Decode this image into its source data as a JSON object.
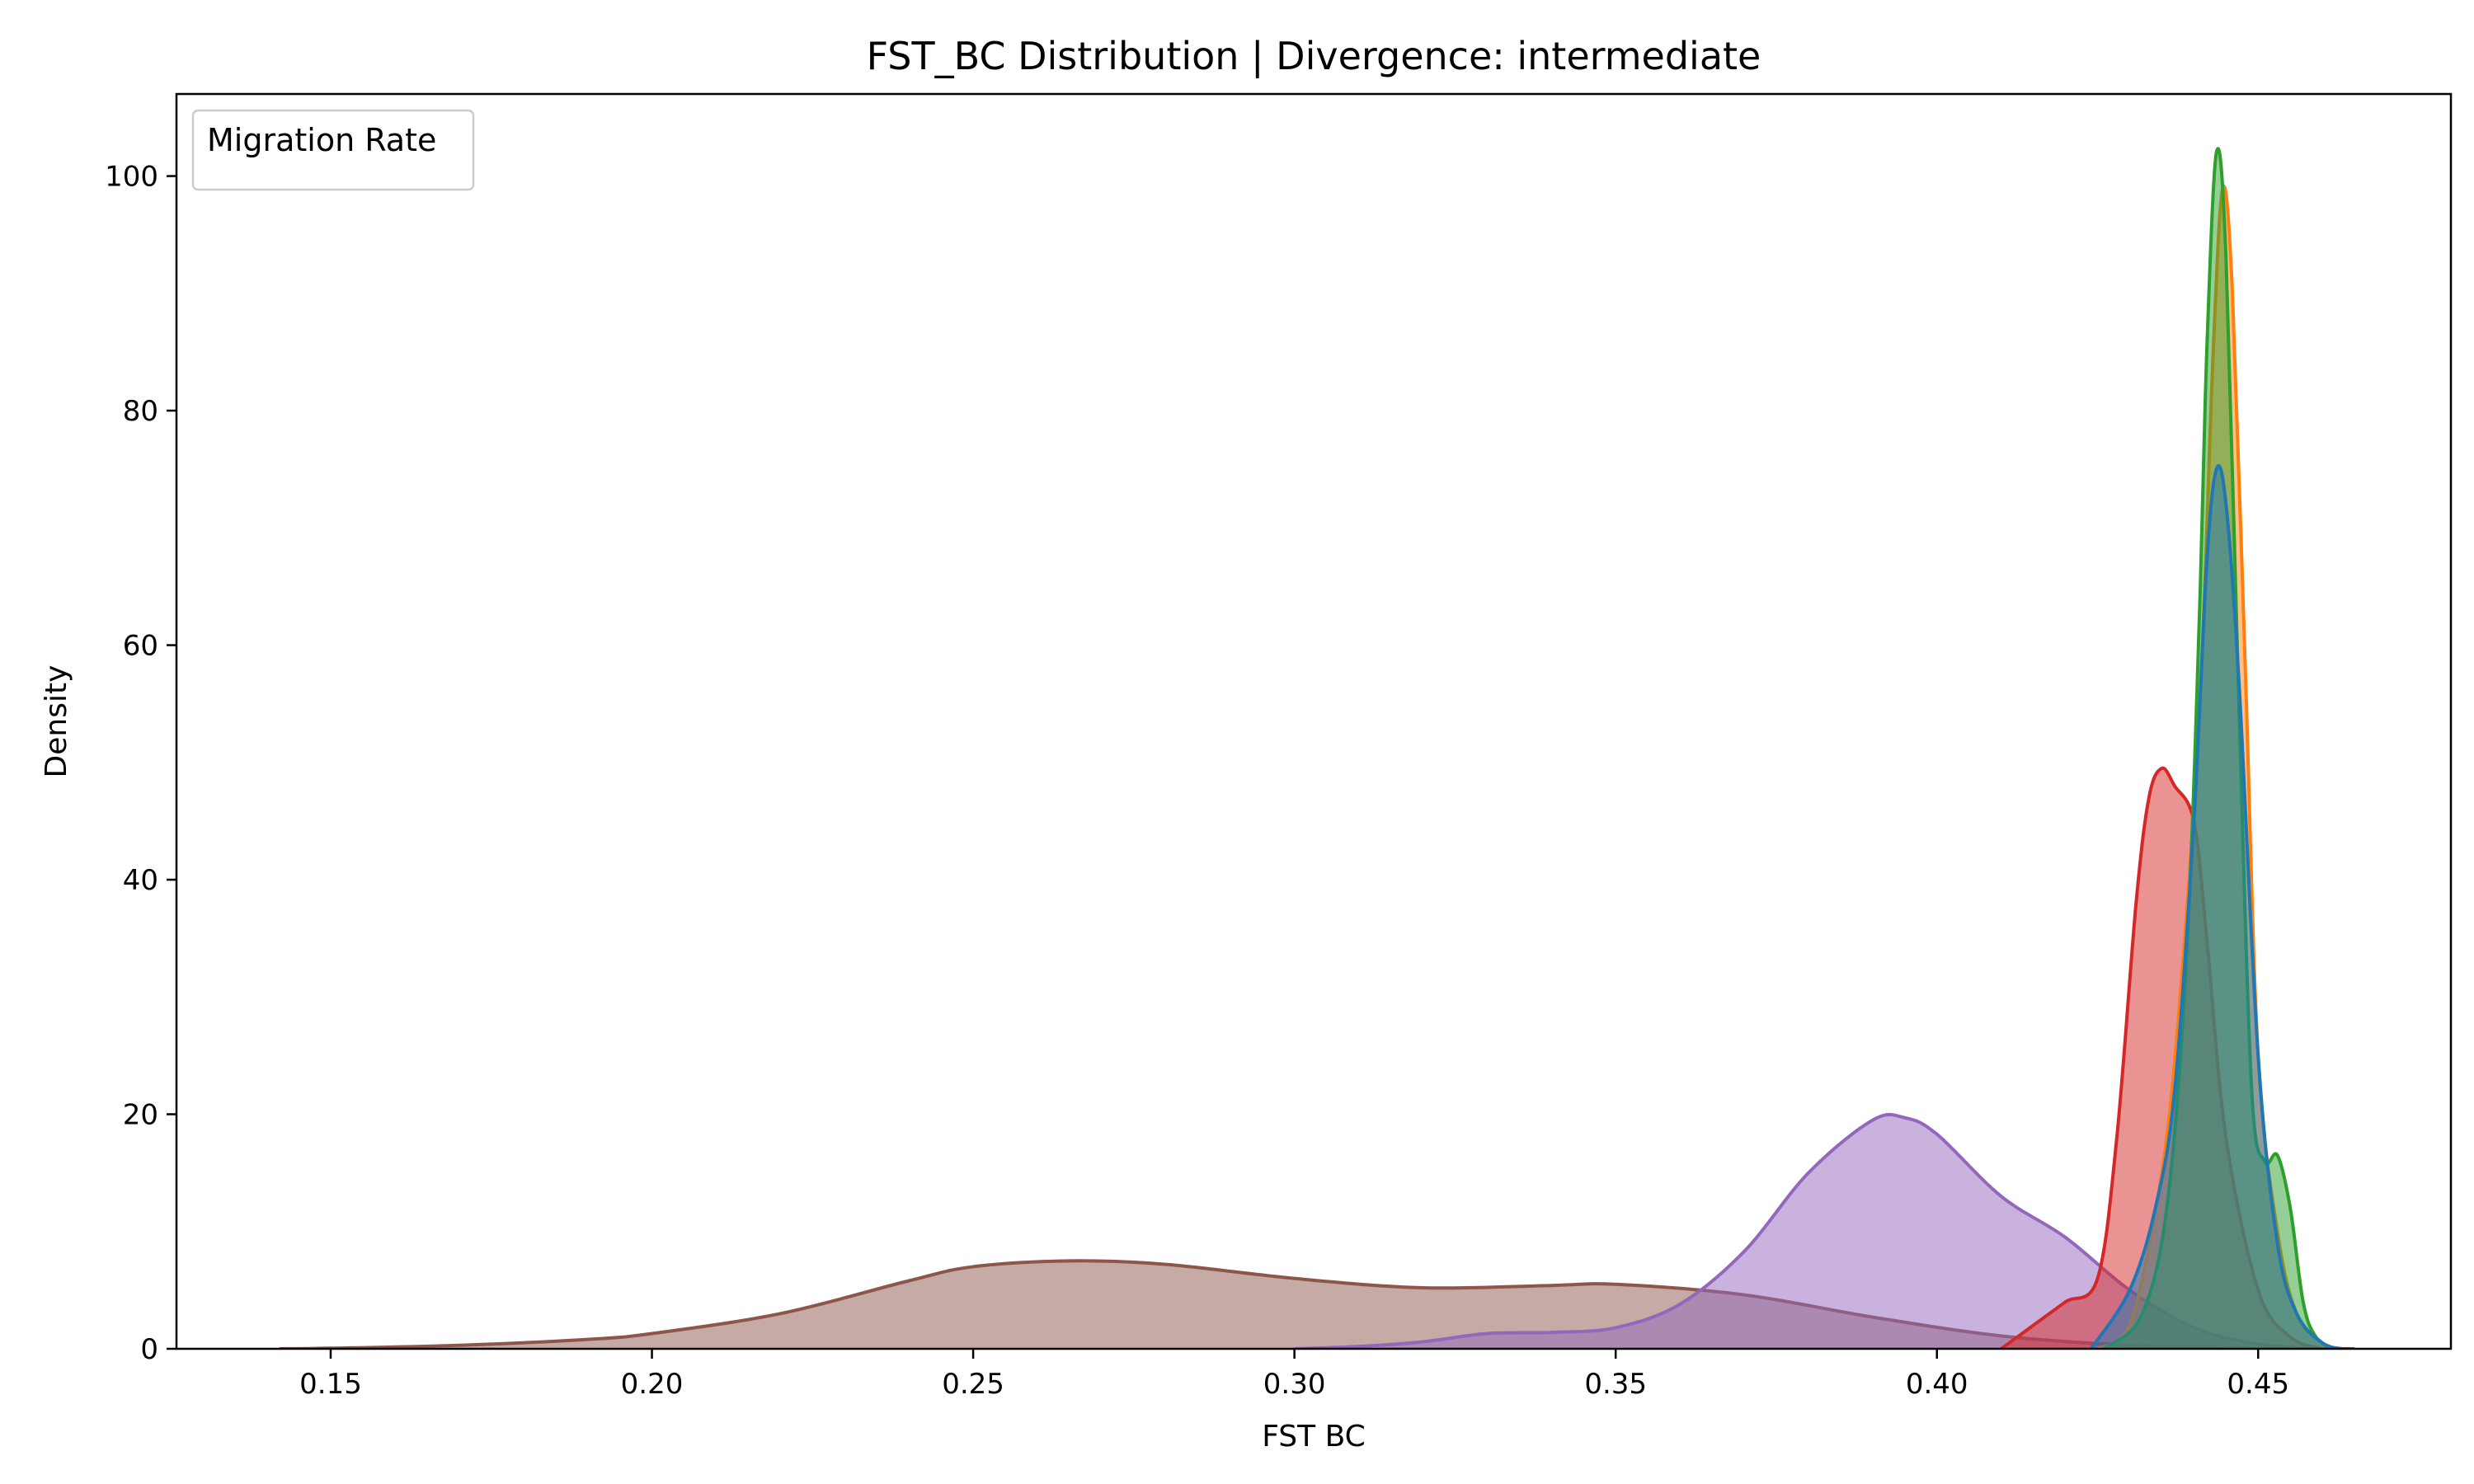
{
  "chart_data": {
    "type": "area",
    "title": "FST_BC Distribution | Divergence: intermediate",
    "xlabel": "FST BC",
    "ylabel": "Density",
    "xlim": [
      0.126,
      0.48
    ],
    "ylim": [
      0,
      107
    ],
    "x_ticks": [
      0.15,
      0.2,
      0.25,
      0.3,
      0.35,
      0.4,
      0.45
    ],
    "x_tick_labels": [
      "0.15",
      "0.20",
      "0.25",
      "0.30",
      "0.35",
      "0.40",
      "0.45"
    ],
    "y_ticks": [
      0,
      20,
      40,
      60,
      80,
      100
    ],
    "y_tick_labels": [
      "0",
      "20",
      "40",
      "60",
      "80",
      "100"
    ],
    "grid": false,
    "legend": {
      "title": "Migration Rate",
      "placement": "top-left",
      "entries": []
    },
    "series": [
      {
        "color": "#8c564b",
        "x": [
          0.142,
          0.15,
          0.17,
          0.19,
          0.2,
          0.22,
          0.24,
          0.25,
          0.265,
          0.28,
          0.3,
          0.32,
          0.34,
          0.35,
          0.37,
          0.39,
          0.41,
          0.43,
          0.45,
          0.465
        ],
        "y": [
          0,
          0.05,
          0.3,
          0.8,
          1.3,
          3.0,
          5.8,
          7.0,
          7.5,
          7.2,
          6.0,
          5.2,
          5.4,
          5.5,
          4.6,
          2.7,
          1.1,
          0.3,
          0.05,
          0
        ]
      },
      {
        "color": "#9467bd",
        "x": [
          0.3,
          0.31,
          0.32,
          0.33,
          0.34,
          0.35,
          0.36,
          0.37,
          0.38,
          0.39,
          0.395,
          0.4,
          0.41,
          0.42,
          0.43,
          0.44,
          0.45,
          0.46
        ],
        "y": [
          0,
          0.2,
          0.6,
          1.3,
          1.4,
          1.8,
          3.8,
          8.3,
          15.0,
          19.5,
          19.7,
          18.3,
          13.0,
          9.5,
          5.0,
          1.8,
          0.4,
          0
        ]
      },
      {
        "color": "#d62728",
        "x": [
          0.41,
          0.415,
          0.42,
          0.425,
          0.428,
          0.431,
          0.433,
          0.435,
          0.437,
          0.44,
          0.442,
          0.445,
          0.45,
          0.455,
          0.46
        ],
        "y": [
          0,
          2.0,
          4.0,
          6.0,
          18.0,
          38.0,
          47.0,
          49.5,
          48.0,
          45.0,
          35.0,
          18.0,
          5.0,
          1.0,
          0
        ]
      },
      {
        "color": "#ff7f0e",
        "x": [
          0.425,
          0.43,
          0.435,
          0.438,
          0.441,
          0.443,
          0.4445,
          0.446,
          0.448,
          0.45,
          0.453,
          0.456,
          0.46,
          0.463
        ],
        "y": [
          0,
          2.0,
          15.0,
          31.0,
          56.0,
          85.0,
          99.0,
          90.0,
          58.0,
          25.0,
          10.0,
          3.0,
          0.5,
          0
        ]
      },
      {
        "color": "#2ca02c",
        "x": [
          0.426,
          0.432,
          0.436,
          0.439,
          0.441,
          0.442,
          0.4435,
          0.445,
          0.447,
          0.449,
          0.451,
          0.453,
          0.455,
          0.457,
          0.459,
          0.462
        ],
        "y": [
          0,
          3.0,
          13.0,
          35.0,
          65.0,
          85.0,
          102.0,
          93.0,
          55.0,
          22.0,
          16.0,
          16.5,
          12.0,
          4.0,
          1.0,
          0
        ]
      },
      {
        "color": "#1f77b4",
        "x": [
          0.424,
          0.43,
          0.434,
          0.437,
          0.44,
          0.442,
          0.4435,
          0.445,
          0.447,
          0.45,
          0.453,
          0.456,
          0.46,
          0.463
        ],
        "y": [
          0,
          5.0,
          12.0,
          22.0,
          45.0,
          67.0,
          75.0,
          72.0,
          57.0,
          25.0,
          9.0,
          3.0,
          0.5,
          0
        ]
      }
    ]
  }
}
